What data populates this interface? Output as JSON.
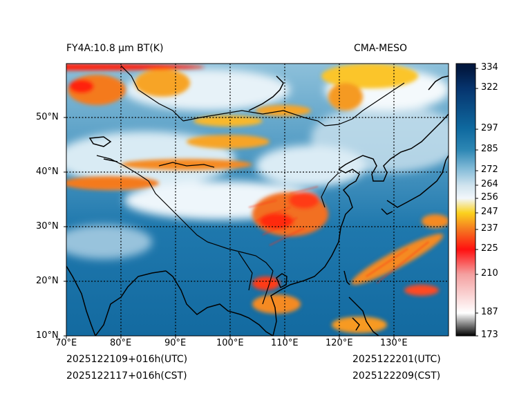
{
  "header": {
    "left_title": "FY4A:10.8 μm BT(K)",
    "right_title": "CMA-MESO"
  },
  "map": {
    "lon_labels": [
      "70°E",
      "80°E",
      "90°E",
      "100°E",
      "110°E",
      "120°E",
      "130°E"
    ],
    "lat_labels": [
      "50°N",
      "40°N",
      "30°N",
      "20°N",
      "10°N"
    ]
  },
  "colorbar": {
    "ticks": [
      "334",
      "322",
      "297",
      "285",
      "272",
      "264",
      "256",
      "247",
      "237",
      "225",
      "210",
      "187",
      "173"
    ],
    "tick_values": [
      334,
      322,
      297,
      285,
      272,
      264,
      256,
      247,
      237,
      225,
      210,
      187,
      173
    ],
    "stops": [
      {
        "value": 173,
        "color": "#000000"
      },
      {
        "value": 187,
        "color": "#ffffff"
      },
      {
        "value": 210,
        "color": "#f4a0a0"
      },
      {
        "value": 225,
        "color": "#ff1010"
      },
      {
        "value": 237,
        "color": "#f57820"
      },
      {
        "value": 247,
        "color": "#fbd21e"
      },
      {
        "value": 256,
        "color": "#f2f7fb"
      },
      {
        "value": 264,
        "color": "#cfe3ee"
      },
      {
        "value": 272,
        "color": "#8cc0db"
      },
      {
        "value": 285,
        "color": "#2d87b4"
      },
      {
        "value": 297,
        "color": "#0f6aa0"
      },
      {
        "value": 322,
        "color": "#06346e"
      },
      {
        "value": 334,
        "color": "#02183f"
      }
    ]
  },
  "footer": {
    "init_utc": "2025122109+016h(UTC)",
    "init_cst": "2025122117+016h(CST)",
    "valid_utc": "2025122201(UTC)",
    "valid_cst": "2025122209(CST)"
  }
}
